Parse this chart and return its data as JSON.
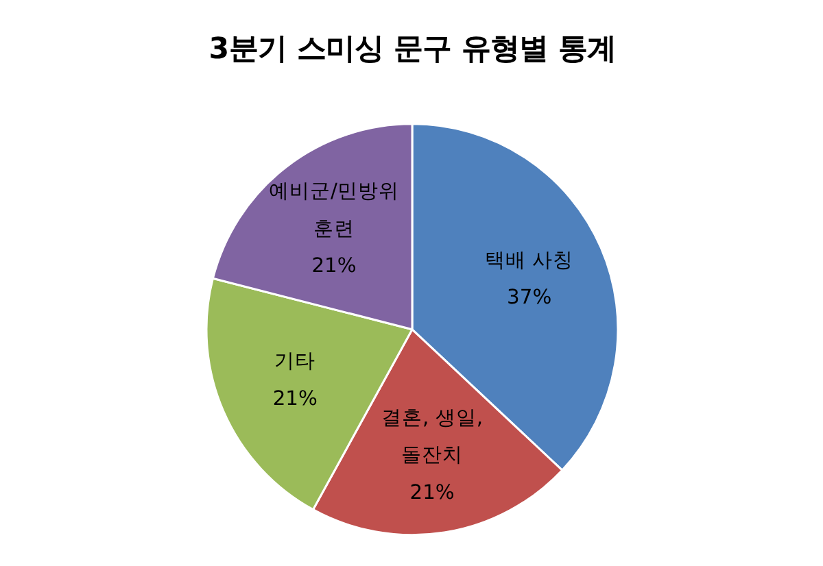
{
  "chart_data": {
    "type": "pie",
    "title": "3분기 스미싱 문구 유형별 통계",
    "categories": [
      "택배 사칭",
      "결혼, 생일, 돌잔치",
      "기타",
      "예비군/민방위 훈련"
    ],
    "values": [
      37,
      21,
      21,
      21
    ],
    "colors": [
      "#4f81bd",
      "#c0504d",
      "#9bbb59",
      "#8064a2"
    ],
    "value_labels": [
      "37%",
      "21%",
      "21%",
      "21%"
    ],
    "legend": false
  }
}
